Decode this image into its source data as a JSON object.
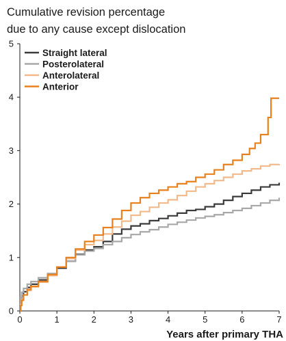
{
  "chart_data": {
    "type": "line",
    "title_lines": [
      "Cumulative revision percentage",
      "due to any cause except dislocation"
    ],
    "xlabel": "Years after primary THA",
    "ylabel": "",
    "xlim": [
      0,
      7
    ],
    "ylim": [
      0,
      5
    ],
    "x_ticks": [
      "0",
      "1",
      "2",
      "3",
      "4",
      "5",
      "6",
      "7"
    ],
    "y_ticks": [
      "0",
      "1",
      "2",
      "3",
      "4",
      "5"
    ],
    "grid": false,
    "legend_position": "top-left",
    "series": [
      {
        "name": "Straight lateral",
        "color": "#3a3a3a",
        "points": [
          [
            0,
            0
          ],
          [
            0.02,
            0.18
          ],
          [
            0.05,
            0.28
          ],
          [
            0.1,
            0.36
          ],
          [
            0.2,
            0.44
          ],
          [
            0.3,
            0.5
          ],
          [
            0.5,
            0.58
          ],
          [
            0.75,
            0.67
          ],
          [
            1.0,
            0.8
          ],
          [
            1.25,
            0.93
          ],
          [
            1.5,
            1.06
          ],
          [
            1.75,
            1.14
          ],
          [
            2.0,
            1.2
          ],
          [
            2.25,
            1.3
          ],
          [
            2.5,
            1.44
          ],
          [
            2.75,
            1.53
          ],
          [
            3.0,
            1.59
          ],
          [
            3.25,
            1.63
          ],
          [
            3.5,
            1.69
          ],
          [
            3.75,
            1.73
          ],
          [
            4.0,
            1.78
          ],
          [
            4.25,
            1.83
          ],
          [
            4.5,
            1.88
          ],
          [
            4.75,
            1.9
          ],
          [
            5.0,
            1.95
          ],
          [
            5.25,
            2.0
          ],
          [
            5.5,
            2.07
          ],
          [
            5.75,
            2.14
          ],
          [
            6.0,
            2.2
          ],
          [
            6.25,
            2.26
          ],
          [
            6.5,
            2.32
          ],
          [
            6.75,
            2.36
          ],
          [
            7.0,
            2.4
          ]
        ]
      },
      {
        "name": "Posterolateral",
        "color": "#a8a8a8",
        "points": [
          [
            0,
            0
          ],
          [
            0.02,
            0.25
          ],
          [
            0.05,
            0.35
          ],
          [
            0.1,
            0.42
          ],
          [
            0.2,
            0.5
          ],
          [
            0.3,
            0.55
          ],
          [
            0.5,
            0.62
          ],
          [
            0.75,
            0.7
          ],
          [
            1.0,
            0.82
          ],
          [
            1.25,
            0.93
          ],
          [
            1.5,
            1.05
          ],
          [
            1.75,
            1.12
          ],
          [
            2.0,
            1.17
          ],
          [
            2.25,
            1.24
          ],
          [
            2.5,
            1.3
          ],
          [
            2.75,
            1.37
          ],
          [
            3.0,
            1.43
          ],
          [
            3.25,
            1.48
          ],
          [
            3.5,
            1.52
          ],
          [
            3.75,
            1.57
          ],
          [
            4.0,
            1.62
          ],
          [
            4.25,
            1.66
          ],
          [
            4.5,
            1.7
          ],
          [
            4.75,
            1.74
          ],
          [
            5.0,
            1.77
          ],
          [
            5.25,
            1.8
          ],
          [
            5.5,
            1.84
          ],
          [
            5.75,
            1.88
          ],
          [
            6.0,
            1.92
          ],
          [
            6.25,
            1.97
          ],
          [
            6.5,
            2.02
          ],
          [
            6.75,
            2.07
          ],
          [
            7.0,
            2.12
          ]
        ]
      },
      {
        "name": "Anterolateral",
        "color": "#f2b98a",
        "points": [
          [
            0,
            0
          ],
          [
            0.02,
            0.12
          ],
          [
            0.05,
            0.22
          ],
          [
            0.1,
            0.3
          ],
          [
            0.2,
            0.38
          ],
          [
            0.3,
            0.45
          ],
          [
            0.5,
            0.54
          ],
          [
            0.75,
            0.66
          ],
          [
            1.0,
            0.82
          ],
          [
            1.25,
            0.98
          ],
          [
            1.5,
            1.14
          ],
          [
            1.75,
            1.24
          ],
          [
            2.0,
            1.32
          ],
          [
            2.25,
            1.44
          ],
          [
            2.5,
            1.57
          ],
          [
            2.75,
            1.68
          ],
          [
            3.0,
            1.79
          ],
          [
            3.25,
            1.86
          ],
          [
            3.5,
            1.94
          ],
          [
            3.75,
            2.02
          ],
          [
            4.0,
            2.08
          ],
          [
            4.25,
            2.16
          ],
          [
            4.5,
            2.24
          ],
          [
            4.75,
            2.32
          ],
          [
            5.0,
            2.38
          ],
          [
            5.25,
            2.44
          ],
          [
            5.5,
            2.5
          ],
          [
            5.75,
            2.56
          ],
          [
            6.0,
            2.62
          ],
          [
            6.25,
            2.66
          ],
          [
            6.5,
            2.71
          ],
          [
            6.75,
            2.74
          ],
          [
            7.0,
            2.75
          ]
        ]
      },
      {
        "name": "Anterior",
        "color": "#e8801e",
        "points": [
          [
            0,
            0
          ],
          [
            0.02,
            0.1
          ],
          [
            0.05,
            0.2
          ],
          [
            0.1,
            0.3
          ],
          [
            0.2,
            0.4
          ],
          [
            0.3,
            0.46
          ],
          [
            0.5,
            0.55
          ],
          [
            0.75,
            0.68
          ],
          [
            1.0,
            0.82
          ],
          [
            1.25,
            1.0
          ],
          [
            1.5,
            1.16
          ],
          [
            1.75,
            1.3
          ],
          [
            2.0,
            1.42
          ],
          [
            2.25,
            1.56
          ],
          [
            2.5,
            1.72
          ],
          [
            2.75,
            1.88
          ],
          [
            3.0,
            2.02
          ],
          [
            3.25,
            2.12
          ],
          [
            3.5,
            2.2
          ],
          [
            3.75,
            2.26
          ],
          [
            4.0,
            2.32
          ],
          [
            4.25,
            2.38
          ],
          [
            4.5,
            2.42
          ],
          [
            4.75,
            2.5
          ],
          [
            5.0,
            2.56
          ],
          [
            5.25,
            2.64
          ],
          [
            5.5,
            2.74
          ],
          [
            5.75,
            2.82
          ],
          [
            6.0,
            2.93
          ],
          [
            6.2,
            3.04
          ],
          [
            6.35,
            3.14
          ],
          [
            6.5,
            3.3
          ],
          [
            6.6,
            3.3
          ],
          [
            6.7,
            3.62
          ],
          [
            6.78,
            3.98
          ],
          [
            7.0,
            3.98
          ]
        ]
      }
    ]
  }
}
